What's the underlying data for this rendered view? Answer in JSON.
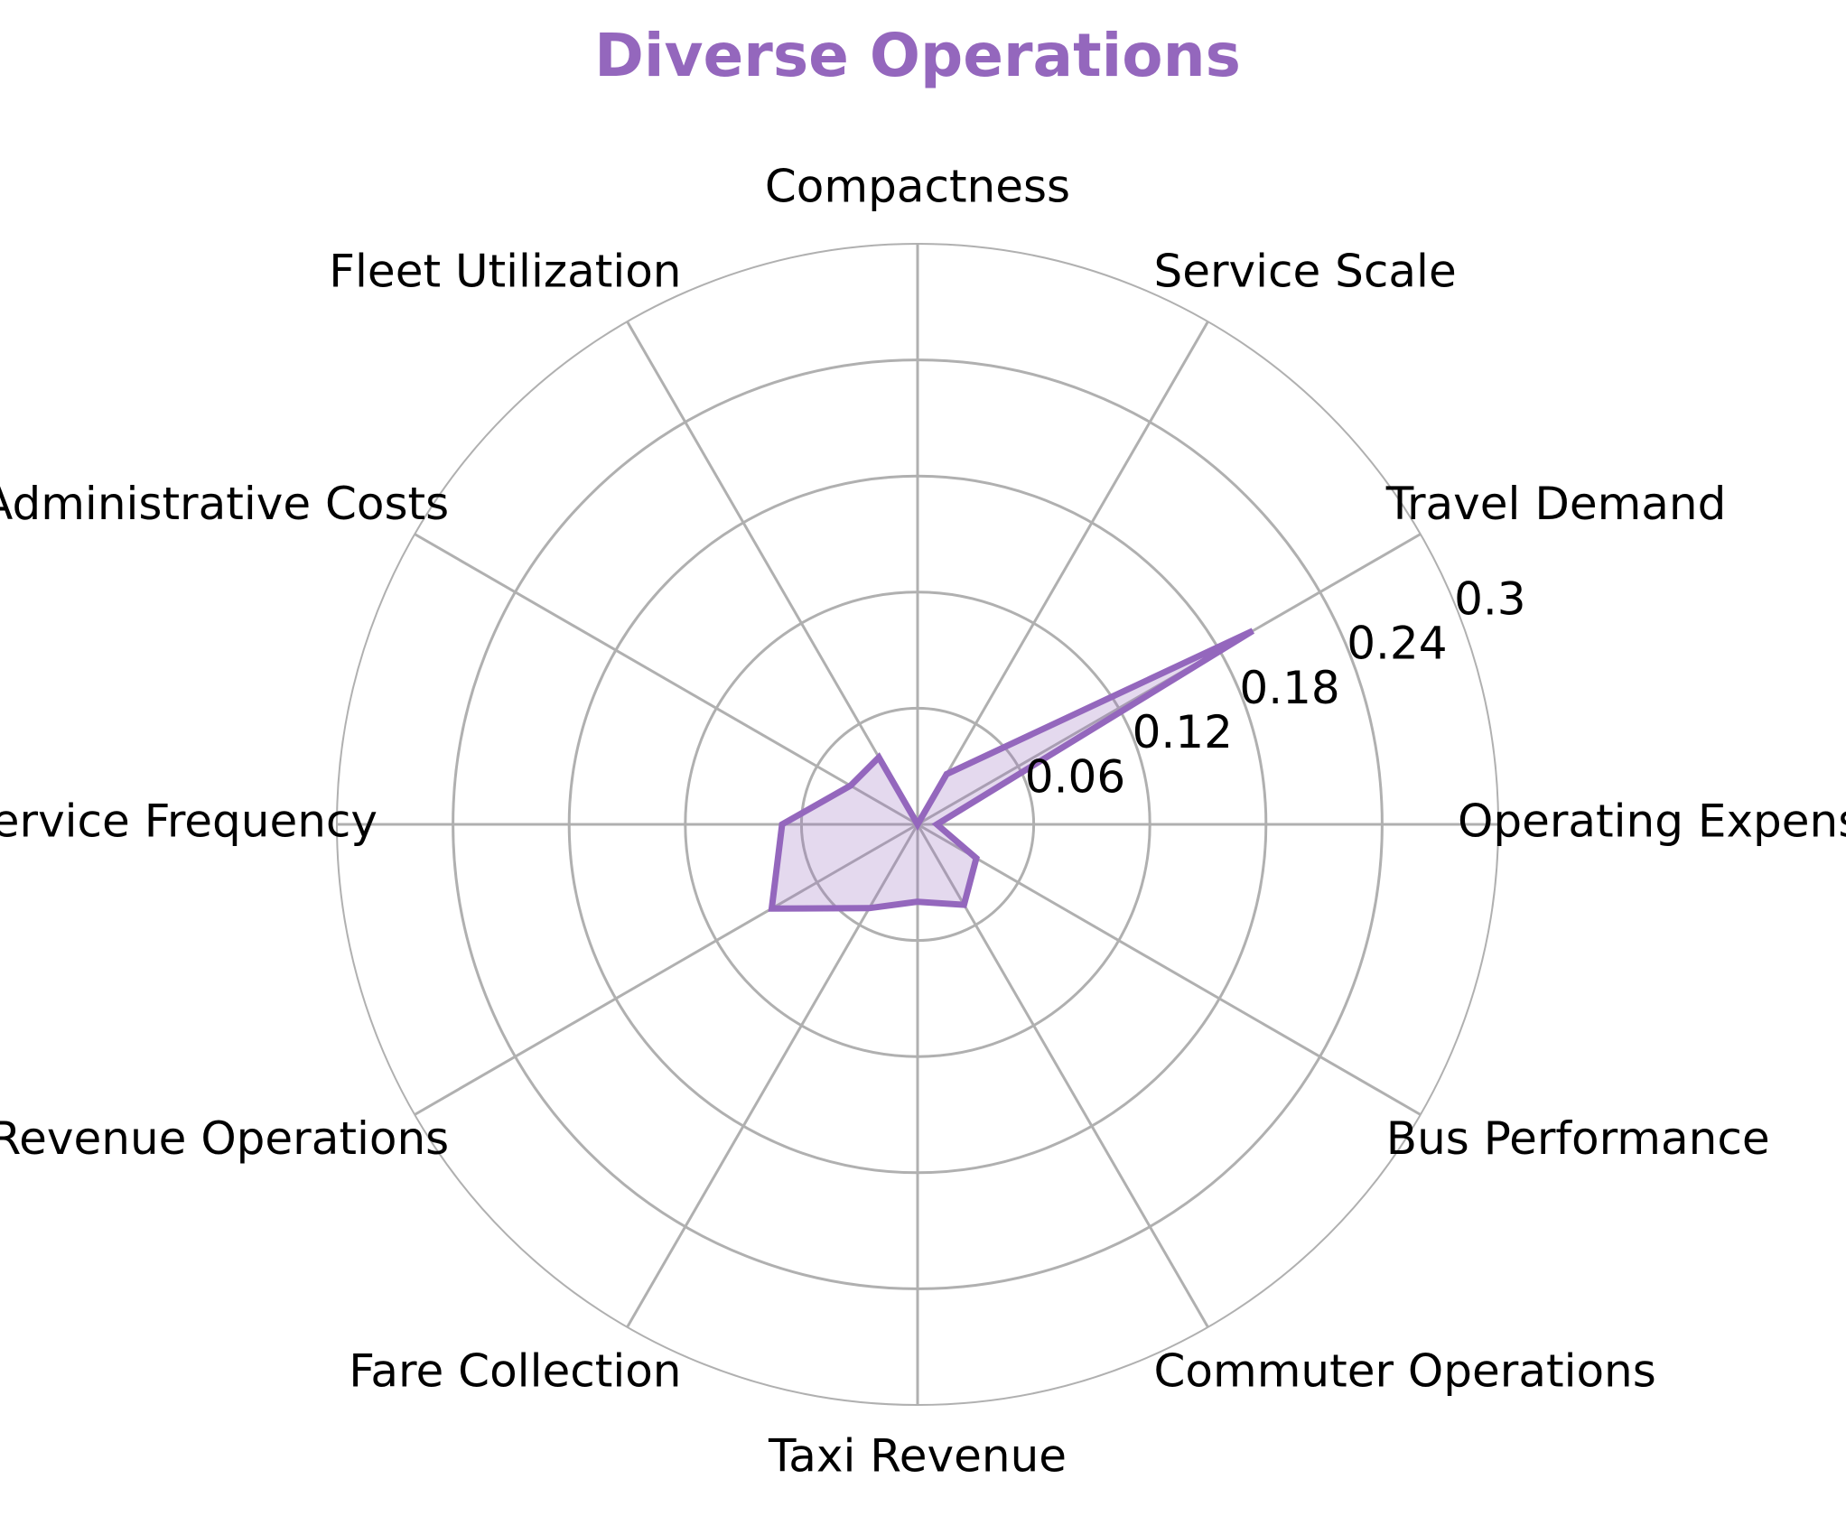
{
  "chart_data": {
    "type": "radar",
    "title": "Diverse Operations",
    "categories": [
      "Operating Expenses",
      "Travel Demand",
      "Service Scale",
      "Compactness",
      "Fleet Utilization",
      "Administrative Costs",
      "Service Frequency",
      "Revenue Operations",
      "Fare Collection",
      "Taxi Revenue",
      "Commuter Operations",
      "Bus Performance"
    ],
    "series": [
      {
        "values": [
          0.01,
          0.2,
          0.03,
          0.0,
          0.04,
          0.04,
          0.07,
          0.087,
          0.05,
          0.04,
          0.048,
          0.035
        ]
      }
    ],
    "rlim": [
      0,
      0.3
    ],
    "radial_ticks": [
      0.06,
      0.12,
      0.18,
      0.24,
      0.3
    ],
    "radial_tick_labels": [
      "0.06",
      "0.12",
      "0.18",
      "0.24",
      "0.3"
    ],
    "grid": true,
    "colors": {
      "series": "#9467bd",
      "fill": "#9467bd",
      "grid": "#b0b0b0",
      "title": "#9467bd"
    }
  }
}
